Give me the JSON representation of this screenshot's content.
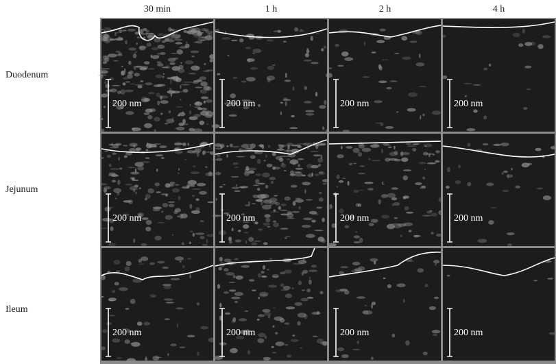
{
  "columns": [
    "30 min",
    "1 h",
    "2 h",
    "4 h"
  ],
  "rows": [
    {
      "label": "Duodenum",
      "panels": [
        {
          "scale_bar": "200 nm"
        },
        {
          "scale_bar": "200 nm"
        },
        {
          "scale_bar": "200 nm"
        },
        {
          "scale_bar": "200 nm"
        }
      ]
    },
    {
      "label": "Jejunum",
      "panels": [
        {
          "scale_bar": "200 nm"
        },
        {
          "scale_bar": "200 nm"
        },
        {
          "scale_bar": "200 nm"
        },
        {
          "scale_bar": "200 nm"
        }
      ]
    },
    {
      "label": "Ileum",
      "panels": [
        {
          "scale_bar": "200 nm"
        },
        {
          "scale_bar": "200 nm"
        },
        {
          "scale_bar": "200 nm"
        },
        {
          "scale_bar": "200 nm"
        }
      ]
    }
  ]
}
